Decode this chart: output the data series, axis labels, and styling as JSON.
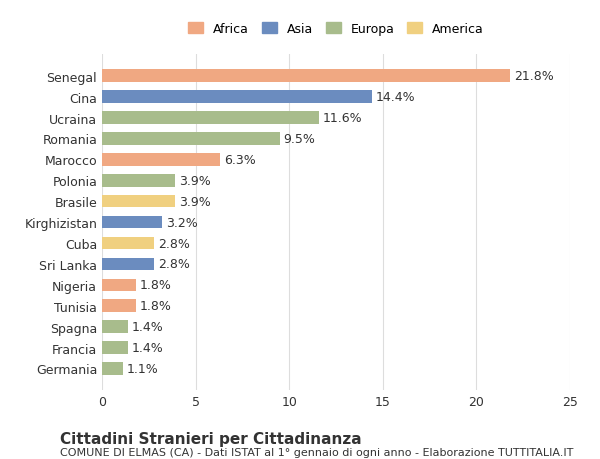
{
  "categories": [
    "Senegal",
    "Cina",
    "Ucraina",
    "Romania",
    "Marocco",
    "Polonia",
    "Brasile",
    "Kirghizistan",
    "Cuba",
    "Sri Lanka",
    "Nigeria",
    "Tunisia",
    "Spagna",
    "Francia",
    "Germania"
  ],
  "values": [
    21.8,
    14.4,
    11.6,
    9.5,
    6.3,
    3.9,
    3.9,
    3.2,
    2.8,
    2.8,
    1.8,
    1.8,
    1.4,
    1.4,
    1.1
  ],
  "continents": [
    "Africa",
    "Asia",
    "Europa",
    "Europa",
    "Africa",
    "Europa",
    "America",
    "Asia",
    "America",
    "Asia",
    "Africa",
    "Africa",
    "Europa",
    "Europa",
    "Europa"
  ],
  "colors": {
    "Africa": "#F0A882",
    "Asia": "#6B8CBF",
    "Europa": "#A8BC8C",
    "America": "#F0D080"
  },
  "legend_order": [
    "Africa",
    "Asia",
    "Europa",
    "America"
  ],
  "title": "Cittadini Stranieri per Cittadinanza",
  "subtitle": "COMUNE DI ELMAS (CA) - Dati ISTAT al 1° gennaio di ogni anno - Elaborazione TUTTITALIA.IT",
  "xlim": [
    0,
    25
  ],
  "xticks": [
    0,
    5,
    10,
    15,
    20,
    25
  ],
  "bar_height": 0.6,
  "background_color": "#ffffff",
  "grid_color": "#dddddd",
  "text_color": "#333333",
  "label_fontsize": 9,
  "title_fontsize": 11,
  "subtitle_fontsize": 8
}
